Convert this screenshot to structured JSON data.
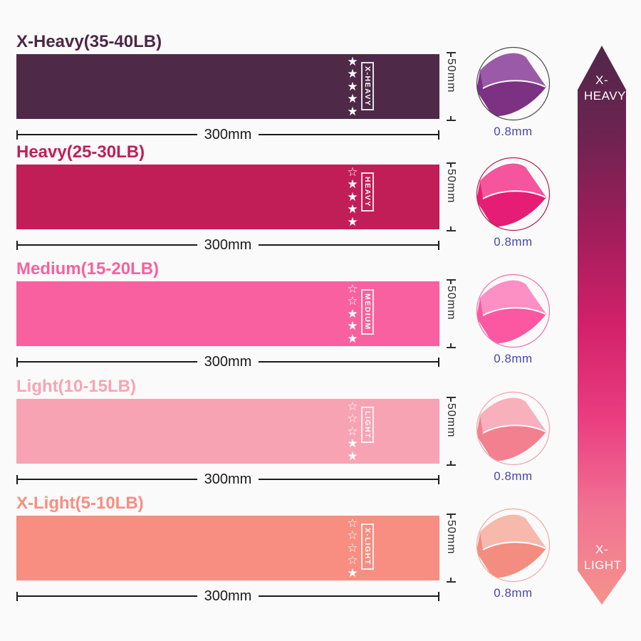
{
  "background": "#fbfafa",
  "thickness_color": "#4648a8",
  "dimension_color": "#1b1b1b",
  "bands": [
    {
      "title": "X-Heavy(35-40LB)",
      "label": "X-HEAVY",
      "color": "#4e2a48",
      "title_color": "#4c2847",
      "stars_filled": 5,
      "stars_total": 5,
      "width_label": "300mm",
      "height_label": "50mm",
      "thickness_label": "0.8mm",
      "fold_main": "#7c3183",
      "fold_flap": "#9a5aa8",
      "circle_border": "#4d4d4d"
    },
    {
      "title": "Heavy(25-30LB)",
      "label": "HEAVY",
      "color": "#c11e58",
      "title_color": "#c02057",
      "stars_filled": 4,
      "stars_total": 5,
      "width_label": "300mm",
      "height_label": "50mm",
      "thickness_label": "0.8mm",
      "fold_main": "#e61d74",
      "fold_flap": "#f4559d",
      "circle_border": "#b52050"
    },
    {
      "title": "Medium(15-20LB)",
      "label": "MEDIUM",
      "color": "#f9609f",
      "title_color": "#f8619e",
      "stars_filled": 3,
      "stars_total": 5,
      "width_label": "300mm",
      "height_label": "50mm",
      "thickness_label": "0.8mm",
      "fold_main": "#fb58a1",
      "fold_flap": "#fc8fc3",
      "circle_border": "#ef6fae"
    },
    {
      "title": "Light(10-15LB)",
      "label": "LIGHT",
      "color": "#f8a3b4",
      "title_color": "#f8a4b5",
      "stars_filled": 2,
      "stars_total": 5,
      "width_label": "300mm",
      "height_label": "50mm",
      "thickness_label": "0.8mm",
      "fold_main": "#f2808f",
      "fold_flap": "#f8b0bd",
      "circle_border": "#efa3b0"
    },
    {
      "title": "X-Light(5-10LB)",
      "label": "X-LIGHT",
      "color": "#f78e81",
      "title_color": "#f78e81",
      "stars_filled": 1,
      "stars_total": 5,
      "width_label": "300mm",
      "height_label": "50mm",
      "thickness_label": "0.8mm",
      "fold_main": "#f28d80",
      "fold_flap": "#f8b9ad",
      "circle_border": "#efab9e"
    }
  ],
  "arrow": {
    "top_label": "X-HEAVY",
    "bottom_label": "X-LIGHT",
    "gradient": [
      "#4f284a",
      "#6f2351",
      "#a21d5b",
      "#d22169",
      "#ea3d80",
      "#f17393",
      "#f5938b"
    ]
  }
}
